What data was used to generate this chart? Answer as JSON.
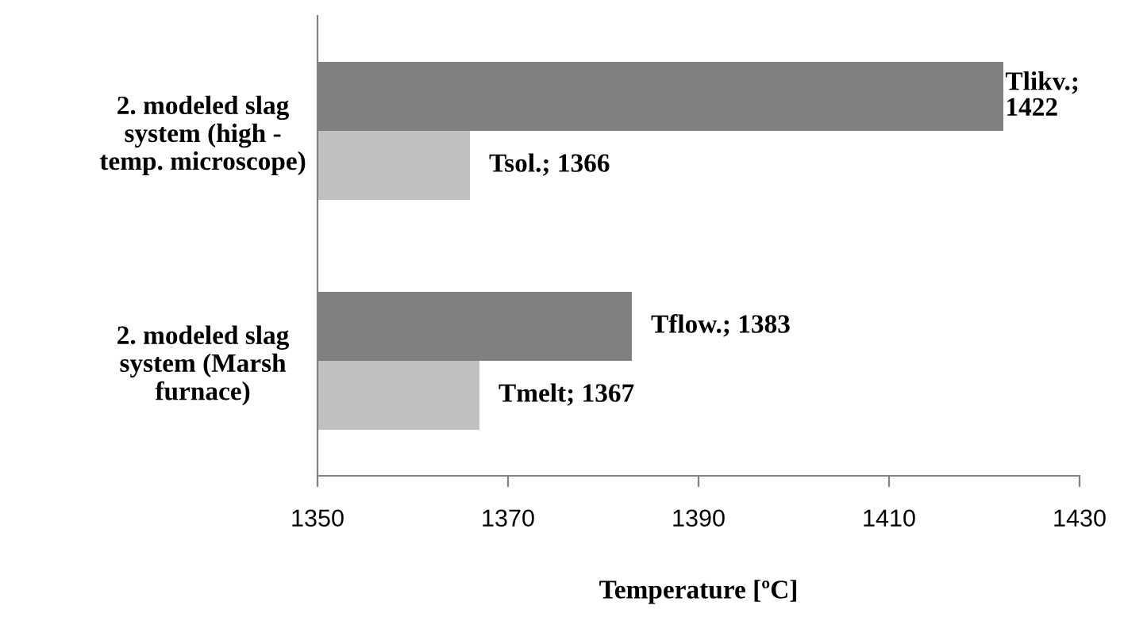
{
  "chart_data": {
    "type": "bar",
    "orientation": "horizontal",
    "xlabel": "Temperature [ºC]",
    "categories": [
      "2. modeled slag system (high - temp. microscope)",
      "2. modeled slag system (Marsh furnace)"
    ],
    "series": [
      {
        "color": "#808080",
        "values": [
          1422,
          1383
        ],
        "value_labels": [
          "Tlikv.; 1422",
          "Tflow.; 1383"
        ]
      },
      {
        "color": "#c0c0c0",
        "values": [
          1366,
          1367
        ],
        "value_labels": [
          "Tsol.; 1366",
          "Tmelt; 1367"
        ]
      }
    ],
    "xlim": [
      1350,
      1430
    ],
    "xticks": [
      1350,
      1370,
      1390,
      1410,
      1430
    ],
    "grid": false,
    "legend": false
  }
}
